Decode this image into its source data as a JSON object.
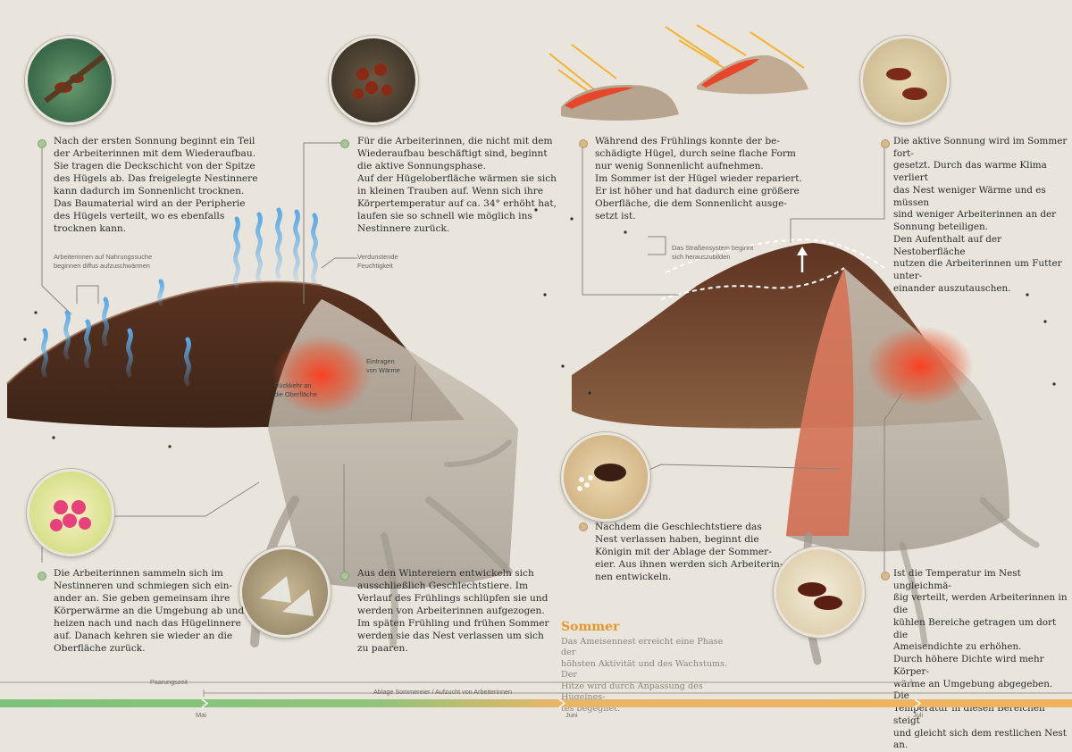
{
  "left": {
    "text1": [
      "Nach der ersten Sonnung beginnt ein Teil",
      "der Arbeiterinnen mit dem Wiederaufbau.",
      "Sie tragen die Deckschicht von der Spitze",
      "des Hügels ab. Das freigelegte Nestinnere",
      "kann dadurch im Sonnenlicht trocknen.",
      "Das Baumaterial wird an der Peripherie",
      "des Hügels verteilt, wo es ebenfalls",
      "trocknen kann."
    ],
    "text2": [
      "Für die Arbeiterinnen, die nicht mit dem",
      "Wiederaufbau beschäftigt sind, beginnt",
      "die aktive Sonnungsphase.",
      "Auf der Hügeloberfläche wärmen sie sich",
      "in kleinen Trauben auf. Wenn sich ihre",
      "Körpertemperatur auf ca. 34° erhöht hat,",
      "laufen sie so schnell wie möglich ins",
      "Nestinnere zurück."
    ],
    "text3": [
      "Die Arbeiterinnen sammeln sich im",
      "Nestinneren und schmiegen sich ein-",
      "ander an. Sie geben gemeinsam ihre",
      "Körperwärme an die Umgebung ab und",
      "heizen nach und nach das Hügelinnere",
      "auf. Danach kehren sie wieder an die",
      "Oberfläche zurück."
    ],
    "text4": [
      "Aus den Wintereiern entwickeln sich",
      "ausschließlich Geschlechtstiere. Im",
      "Verlauf des Frühlings schlüpfen sie und",
      "werden von Arbeiterinnen aufgezogen.",
      "Im späten Frühling und frühen Sommer",
      "werden sie das Nest verlassen um sich",
      "zu paaren."
    ],
    "label_forage": [
      "Arbeiterinnen auf Nahrungssuche",
      "beginnen diffus aufzuschwärmen"
    ],
    "label_humidity": [
      "Verdunstende",
      "Feuchtigkeit"
    ],
    "label_heat_in": [
      "Eintragen",
      "von Wärme"
    ],
    "label_return": [
      "Rückkehr an",
      "die Oberfläche"
    ]
  },
  "right": {
    "text1": [
      "Während des Frühlings konnte der be-",
      "schädigte Hügel, durch seine flache Form",
      "nur wenig Sonnenlicht aufnehmen.",
      "Im Sommer ist der Hügel wieder repariert.",
      "Er ist höher und hat dadurch eine größere",
      "Oberfläche, die dem Sonnenlicht ausge-",
      "setzt ist."
    ],
    "text2": [
      "Die aktive Sonnung wird im Sommer fort-",
      "gesetzt. Durch das warme Klima verliert",
      "das Nest weniger Wärme und es müssen",
      "sind weniger Arbeiterinnen an der",
      "Sonnung beteiligen.",
      "Den Aufenthalt auf der Nestoberfläche",
      "nutzen die Arbeiterinnen um Futter unter-",
      "einander auszutauschen."
    ],
    "text3": [
      "Nachdem die Geschlechtstiere das",
      "Nest verlassen haben, beginnt die",
      "Königin mit der Ablage der Sommer-",
      "eier. Aus ihnen werden sich Arbeiterin-",
      "nen entwickeln."
    ],
    "text4": [
      "Ist die Temperatur im Nest ungleichmä-",
      "ßig verteilt, werden Arbeiterinnen in die",
      "kühlen Bereiche getragen um dort die",
      "Ameisendichte zu erhöhen.",
      "Durch höhere Dichte wird mehr Körper-",
      "wärme an Umgebung abgegeben. Die",
      "Temperatur in diesen Bereichen steigt",
      "und gleicht sich dem restlichen Nest an."
    ],
    "label_roads": [
      "Das Straßensystem beginnt",
      "sich herauszubilden"
    ],
    "season_title": "Sommer",
    "season_text": [
      "Das Ameisennest erreicht eine Phase der",
      "höhsten Aktivität und des Wachstums. Der",
      "Hitze wird durch Anpassung des Hügelnes-",
      "tes begegnet."
    ]
  },
  "timeline": {
    "label_mating": "Paarungszeit",
    "label_eggs": "Ablage Sommereier / Aufzucht von Arbeiterinnen",
    "months": [
      "Mai",
      "Juni",
      "Juli"
    ],
    "colors": {
      "green": "#7cc27a",
      "orange": "#f0b35c"
    }
  }
}
